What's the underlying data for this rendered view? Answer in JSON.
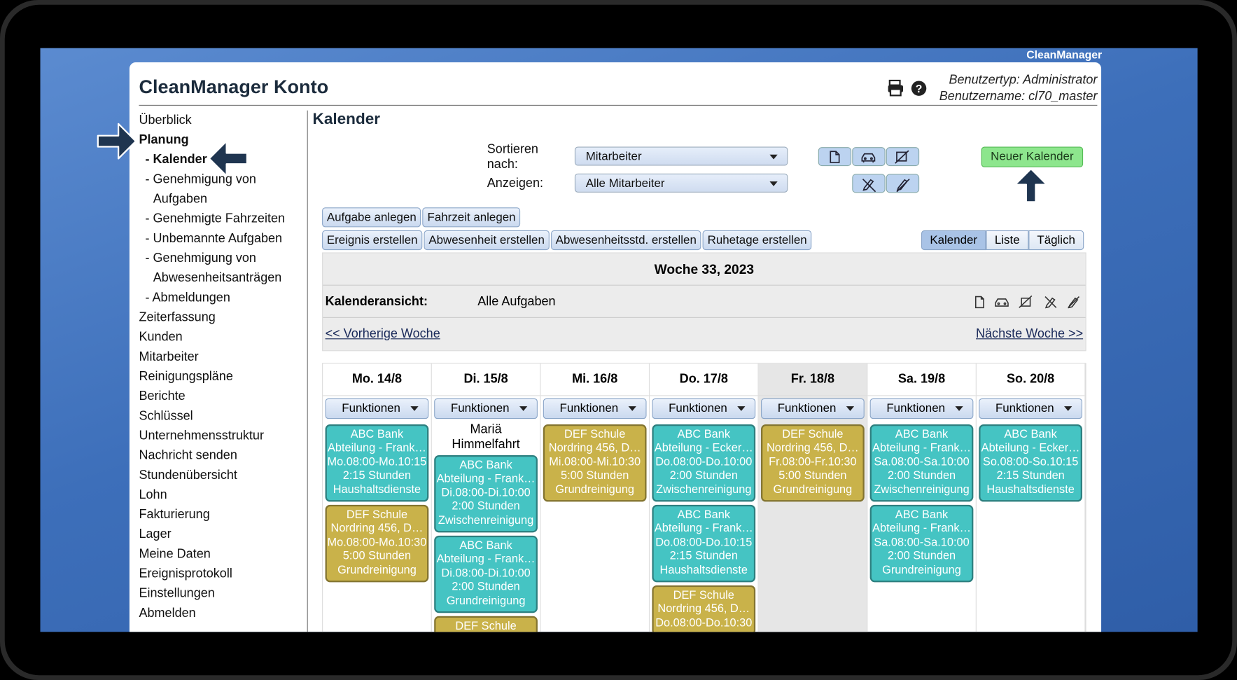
{
  "brand": "CleanManager",
  "header": {
    "title": "CleanManager Konto",
    "user_type": "Benutzertyp: Administrator",
    "user_name": "Benutzername: cl70_master"
  },
  "nav": [
    {
      "text": "Überblick",
      "level": 0
    },
    {
      "text": "Planung",
      "level": 0,
      "bold": true
    },
    {
      "text": "- Kalender",
      "level": 1,
      "bold": true
    },
    {
      "text": "- Genehmigung von Aufgaben",
      "level": 1
    },
    {
      "text": "- Genehmigte Fahrzeiten",
      "level": 1
    },
    {
      "text": "- Unbemannte Aufgaben",
      "level": 1
    },
    {
      "text": "- Genehmigung von Abwesenheitsanträgen",
      "level": 1
    },
    {
      "text": "- Abmeldungen",
      "level": 1
    },
    {
      "text": "Zeiterfassung",
      "level": 0
    },
    {
      "text": "Kunden",
      "level": 0
    },
    {
      "text": "Mitarbeiter",
      "level": 0
    },
    {
      "text": "Reinigungspläne",
      "level": 0
    },
    {
      "text": "Berichte",
      "level": 0
    },
    {
      "text": "Schlüssel",
      "level": 0
    },
    {
      "text": "Unternehmensstruktur",
      "level": 0
    },
    {
      "text": "Nachricht senden",
      "level": 0
    },
    {
      "text": "Stundenübersicht",
      "level": 0
    },
    {
      "text": "Lohn",
      "level": 0
    },
    {
      "text": "Fakturierung",
      "level": 0
    },
    {
      "text": "Lager",
      "level": 0
    },
    {
      "text": "Meine Daten",
      "level": 0
    },
    {
      "text": "Ereignisprotokoll",
      "level": 0
    },
    {
      "text": "Einstellungen",
      "level": 0
    },
    {
      "text": "Abmelden",
      "level": 0
    }
  ],
  "page_title": "Kalender",
  "filters": {
    "sort_label": "Sortieren nach:",
    "sort_value": "Mitarbeiter",
    "show_label": "Anzeigen:",
    "show_value": "Alle Mitarbeiter"
  },
  "new_button": "Neuer Kalender",
  "actions_row1": [
    "Aufgabe anlegen",
    "Fahrzeit anlegen"
  ],
  "actions_row2": [
    "Ereignis erstellen",
    "Abwesenheit erstellen",
    "Abwesenheitsstd. erstellen",
    "Ruhetage erstellen"
  ],
  "view_tabs": [
    "Kalender",
    "Liste",
    "Täglich"
  ],
  "week_title": "Woche 33, 2023",
  "view_label": "Kalenderansicht:",
  "view_value": "Alle Aufgaben",
  "prev_link": "<< Vorherige Woche",
  "next_link": "Nächste Woche >>",
  "day_menu": "Funktionen",
  "days": [
    {
      "label": "Mo. 14/8",
      "tasks": [
        {
          "color": "#45c4c3",
          "lines": [
            "ABC Bank",
            "Abteilung - Frank…",
            "Mo.08:00-Mo.10:15",
            "2:15 Stunden",
            "Haushaltsdienste"
          ]
        },
        {
          "color": "#c9b24a",
          "lines": [
            "DEF Schule",
            "Nordring 456, D…",
            "Mo.08:00-Mo.10:30",
            "5:00 Stunden",
            "Grundreinigung"
          ]
        }
      ]
    },
    {
      "label": "Di. 15/8",
      "holiday": "Mariä Himmelfahrt",
      "tasks": [
        {
          "color": "#45c4c3",
          "lines": [
            "ABC Bank",
            "Abteilung - Frank…",
            "Di.08:00-Di.10:00",
            "2:00 Stunden",
            "Zwischenreinigung"
          ]
        },
        {
          "color": "#45c4c3",
          "lines": [
            "ABC Bank",
            "Abteilung - Frank…",
            "Di.08:00-Di.10:00",
            "2:00 Stunden",
            "Grundreinigung"
          ]
        },
        {
          "color": "#c9b24a",
          "lines": [
            "DEF Schule"
          ]
        }
      ]
    },
    {
      "label": "Mi. 16/8",
      "tasks": [
        {
          "color": "#c9b24a",
          "lines": [
            "DEF Schule",
            "Nordring 456, D…",
            "Mi.08:00-Mi.10:30",
            "5:00 Stunden",
            "Grundreinigung"
          ]
        }
      ]
    },
    {
      "label": "Do. 17/8",
      "tasks": [
        {
          "color": "#45c4c3",
          "lines": [
            "ABC Bank",
            "Abteilung - Ecker…",
            "Do.08:00-Do.10:00",
            "2:00 Stunden",
            "Zwischenreinigung"
          ]
        },
        {
          "color": "#45c4c3",
          "lines": [
            "ABC Bank",
            "Abteilung - Frank…",
            "Do.08:00-Do.10:15",
            "2:15 Stunden",
            "Haushaltsdienste"
          ]
        },
        {
          "color": "#c9b24a",
          "lines": [
            "DEF Schule",
            "Nordring 456, D…",
            "Do.08:00-Do.10:30"
          ]
        }
      ]
    },
    {
      "label": "Fr. 18/8",
      "today": true,
      "tasks": [
        {
          "color": "#c9b24a",
          "lines": [
            "DEF Schule",
            "Nordring 456, D…",
            "Fr.08:00-Fr.10:30",
            "5:00 Stunden",
            "Grundreinigung"
          ]
        }
      ]
    },
    {
      "label": "Sa. 19/8",
      "tasks": [
        {
          "color": "#45c4c3",
          "lines": [
            "ABC Bank",
            "Abteilung - Frank…",
            "Sa.08:00-Sa.10:00",
            "2:00 Stunden",
            "Zwischenreinigung"
          ]
        },
        {
          "color": "#45c4c3",
          "lines": [
            "ABC Bank",
            "Abteilung - Frank…",
            "Sa.08:00-Sa.10:00",
            "2:00 Stunden",
            "Grundreinigung"
          ]
        }
      ]
    },
    {
      "label": "So. 20/8",
      "tasks": [
        {
          "color": "#45c4c3",
          "lines": [
            "ABC Bank",
            "Abteilung - Ecker…",
            "So.08:00-So.10:15",
            "2:15 Stunden",
            "Haushaltsdienste"
          ]
        }
      ]
    }
  ]
}
